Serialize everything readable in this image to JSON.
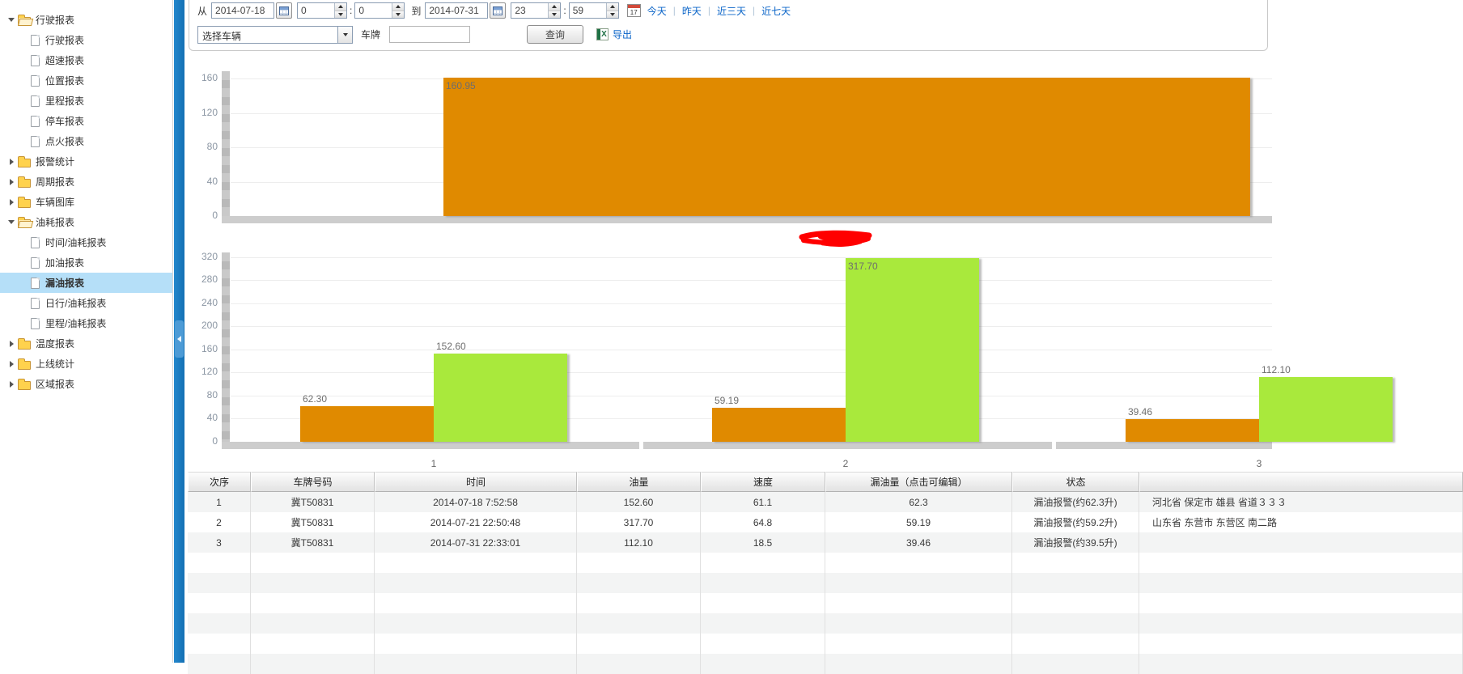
{
  "toolbar": {
    "from_label": "从",
    "to_label": "到",
    "from_date": "2014-07-18",
    "to_date": "2014-07-31",
    "from_hour": "0",
    "from_minute": "0",
    "to_hour": "23",
    "to_minute": "59",
    "cal17_day": "17",
    "quick_links": [
      "今天",
      "昨天",
      "近三天",
      "近七天"
    ],
    "vehicle_select_value": "选择车辆",
    "plate_label": "车牌",
    "plate_value": "",
    "query_button": "查询",
    "export_label": "导出"
  },
  "sidebar": {
    "items": [
      {
        "label": "行驶报表",
        "type": "folder",
        "state": "expanded",
        "level": 0,
        "selected": false
      },
      {
        "label": "行驶报表",
        "type": "doc",
        "level": 1,
        "selected": false
      },
      {
        "label": "超速报表",
        "type": "doc",
        "level": 1,
        "selected": false
      },
      {
        "label": "位置报表",
        "type": "doc",
        "level": 1,
        "selected": false
      },
      {
        "label": "里程报表",
        "type": "doc",
        "level": 1,
        "selected": false
      },
      {
        "label": "停车报表",
        "type": "doc",
        "level": 1,
        "selected": false
      },
      {
        "label": "点火报表",
        "type": "doc",
        "level": 1,
        "selected": false
      },
      {
        "label": "报警统计",
        "type": "folder",
        "state": "collapsed",
        "level": 0,
        "selected": false
      },
      {
        "label": "周期报表",
        "type": "folder",
        "state": "collapsed",
        "level": 0,
        "selected": false
      },
      {
        "label": "车辆图库",
        "type": "folder",
        "state": "collapsed",
        "level": 0,
        "selected": false
      },
      {
        "label": "油耗报表",
        "type": "folder",
        "state": "expanded",
        "level": 0,
        "selected": false
      },
      {
        "label": "时间/油耗报表",
        "type": "doc",
        "level": 1,
        "selected": false
      },
      {
        "label": "加油报表",
        "type": "doc",
        "level": 1,
        "selected": false
      },
      {
        "label": "漏油报表",
        "type": "doc",
        "level": 1,
        "selected": true
      },
      {
        "label": "日行/油耗报表",
        "type": "doc",
        "level": 1,
        "selected": false
      },
      {
        "label": "里程/油耗报表",
        "type": "doc",
        "level": 1,
        "selected": false
      },
      {
        "label": "温度报表",
        "type": "folder",
        "state": "collapsed",
        "level": 0,
        "selected": false
      },
      {
        "label": "上线统计",
        "type": "folder",
        "state": "collapsed",
        "level": 0,
        "selected": false
      },
      {
        "label": "区域报表",
        "type": "folder",
        "state": "collapsed",
        "level": 0,
        "selected": false
      }
    ]
  },
  "chart_data": [
    {
      "type": "bar",
      "title": "",
      "categories": [
        ""
      ],
      "series": [
        {
          "name": "油量",
          "values": [
            160.95
          ],
          "color": "#e08a00"
        }
      ],
      "ylim": [
        0,
        160
      ],
      "yticks": [
        0,
        40,
        80,
        120,
        160
      ],
      "grid": true,
      "legend": "none",
      "note": "category label redacted with red scribble"
    },
    {
      "type": "bar",
      "title": "",
      "categories": [
        "1",
        "2",
        "3"
      ],
      "series": [
        {
          "name": "漏油量",
          "values": [
            62.3,
            59.19,
            39.46
          ],
          "color": "#e08a00"
        },
        {
          "name": "油量",
          "values": [
            152.6,
            317.7,
            112.1
          ],
          "color": "#a9e93c"
        }
      ],
      "ylim": [
        0,
        320
      ],
      "yticks": [
        0,
        40,
        80,
        120,
        160,
        200,
        240,
        280,
        320
      ],
      "grid": true,
      "legend": "none"
    }
  ],
  "table": {
    "columns": [
      "次序",
      "车牌号码",
      "时间",
      "油量",
      "速度",
      "漏油量（点击可编辑）",
      "状态",
      ""
    ],
    "rows": [
      [
        "1",
        "冀T50831",
        "2014-07-18 7:52:58",
        "152.60",
        "61.1",
        "62.3",
        "漏油报警(约62.3升)",
        "河北省 保定市 雄县 省道３３３"
      ],
      [
        "2",
        "冀T50831",
        "2014-07-21 22:50:48",
        "317.70",
        "64.8",
        "59.19",
        "漏油报警(约59.2升)",
        "山东省 东营市 东营区 南二路"
      ],
      [
        "3",
        "冀T50831",
        "2014-07-31 22:33:01",
        "112.10",
        "18.5",
        "39.46",
        "漏油报警(约39.5升)",
        ""
      ]
    ],
    "empty_row_count": 6
  },
  "colors": {
    "splitter_blue": "#1575be",
    "link_blue": "#0a64c8",
    "bar_orange": "#e08a00",
    "bar_green": "#a9e93c",
    "selected_item_bg": "#b5dff8",
    "redaction_red": "#ff0000"
  }
}
